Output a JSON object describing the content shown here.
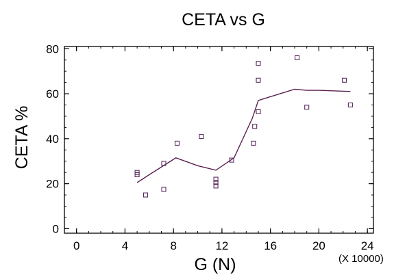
{
  "chart_data": {
    "type": "scatter",
    "title": "CETA vs G",
    "xlabel": "G (N)",
    "ylabel": "CETA %",
    "x_multiplier_label": "(X 10000)",
    "xlim": [
      -1,
      24.5
    ],
    "ylim": [
      -2,
      81
    ],
    "xticks": [
      0,
      4,
      8,
      12,
      16,
      20,
      24
    ],
    "yticks": [
      0,
      20,
      40,
      60,
      80
    ],
    "grid": false,
    "legend": "none",
    "colors": {
      "marker": "#5a2a5e",
      "line": "#5a1f4f",
      "axis": "#000000"
    },
    "series": [
      {
        "kind": "scatter",
        "marker": "square-open",
        "x": [
          5.0,
          5.0,
          5.7,
          7.2,
          7.2,
          8.3,
          10.3,
          11.5,
          11.5,
          11.5,
          12.8,
          14.6,
          14.7,
          15.0,
          15.0,
          15.0,
          18.2,
          19.0,
          22.1,
          22.6
        ],
        "y": [
          25.0,
          24.0,
          15.0,
          29.0,
          17.5,
          38.0,
          41.0,
          22.0,
          20.5,
          19.0,
          30.5,
          38.0,
          45.5,
          52.0,
          66.0,
          73.5,
          76.0,
          54.0,
          66.0,
          55.0
        ]
      },
      {
        "kind": "line",
        "x": [
          5.0,
          6.0,
          8.2,
          10.0,
          11.5,
          13.0,
          14.5,
          15.0,
          18.0,
          19.0,
          20.0,
          22.6
        ],
        "y": [
          20.5,
          24.0,
          31.5,
          28.0,
          26.0,
          31.5,
          49.0,
          57.0,
          62.0,
          61.5,
          61.5,
          61.0
        ]
      }
    ]
  }
}
